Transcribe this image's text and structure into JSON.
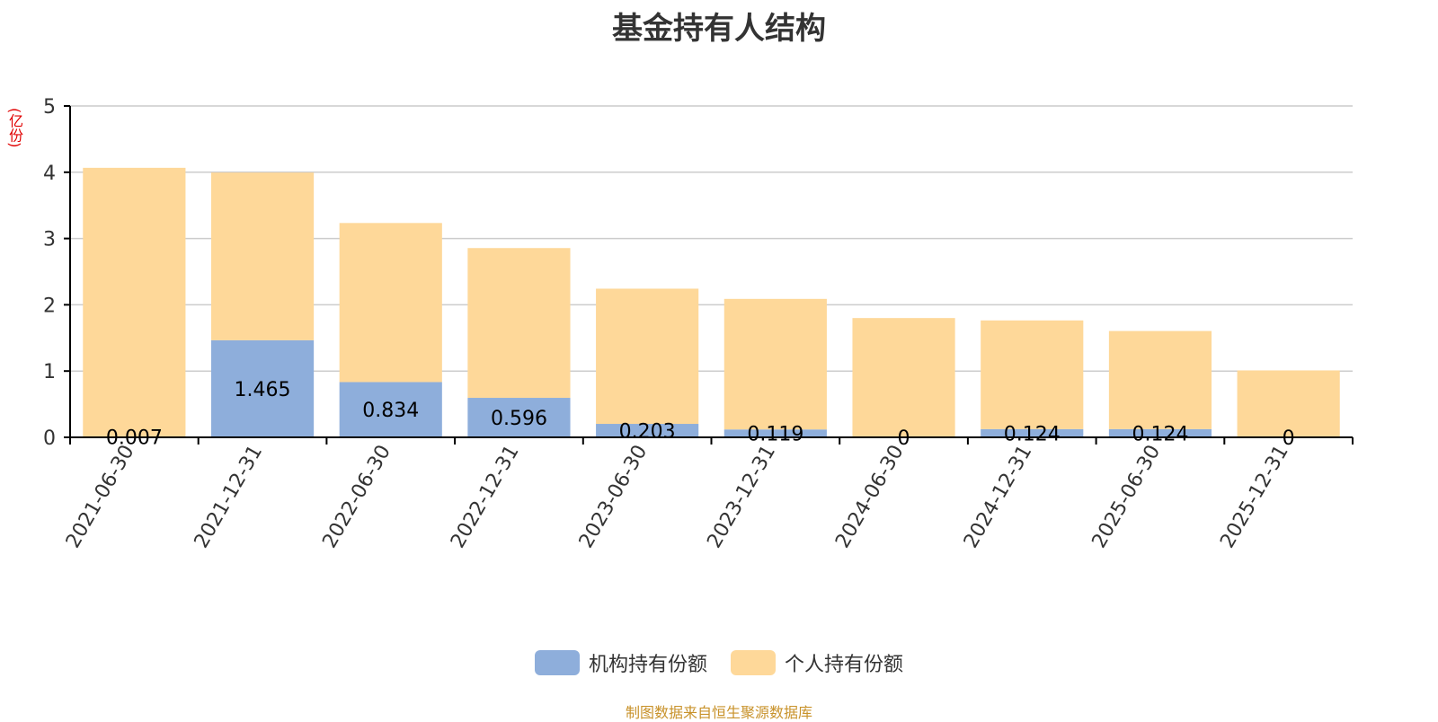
{
  "colors": {
    "institution": "#8eaedb",
    "individual": "#fed899",
    "grid": "#cccccc",
    "axis": "#000000",
    "unit_text": "#e00000",
    "source_text": "#c8922a"
  },
  "chart_data": {
    "type": "bar",
    "stacked": true,
    "title": "基金持有人结构",
    "ylabel": "(亿份)",
    "ylim": [
      0,
      5
    ],
    "yticks": [
      0,
      1,
      2,
      3,
      4,
      5
    ],
    "grid": true,
    "legend_position": "bottom-center",
    "categories": [
      "2021-06-30",
      "2021-12-31",
      "2022-06-30",
      "2022-12-31",
      "2023-06-30",
      "2023-12-31",
      "2024-06-30",
      "2024-12-31",
      "2025-06-30",
      "2025-12-31"
    ],
    "series": [
      {
        "name": "机构持有份额",
        "color_key": "institution",
        "values": [
          0.007,
          1.465,
          0.834,
          0.596,
          0.203,
          0.119,
          0,
          0.124,
          0.124,
          0
        ],
        "labels": [
          "0.007",
          "1.465",
          "0.834",
          "0.596",
          "0.203",
          "0.119",
          "0",
          "0.124",
          "0.124",
          "0"
        ]
      },
      {
        "name": "个人持有份额",
        "color_key": "individual",
        "values": [
          4.06,
          2.53,
          2.4,
          2.26,
          2.04,
          1.97,
          1.8,
          1.64,
          1.48,
          1.01
        ]
      }
    ]
  },
  "source": "制图数据来自恒生聚源数据库"
}
